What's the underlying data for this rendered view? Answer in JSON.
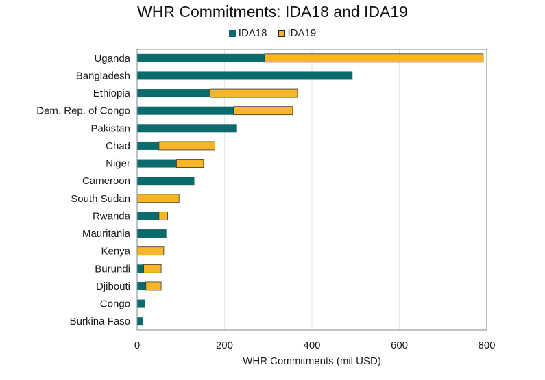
{
  "chart_data": {
    "type": "bar",
    "orientation": "horizontal",
    "stacked": true,
    "title": "WHR Commitments: IDA18 and IDA19",
    "xlabel": "WHR Commitments (mil USD)",
    "ylabel": "",
    "xlim": [
      0,
      800
    ],
    "xticks": [
      0,
      200,
      400,
      600,
      800
    ],
    "grid": "vertical",
    "legend_position": "top",
    "categories": [
      "Uganda",
      "Bangladesh",
      "Ethiopia",
      "Dem. Rep. of Congo",
      "Pakistan",
      "Chad",
      "Niger",
      "Cameroon",
      "South Sudan",
      "Rwanda",
      "Mauritania",
      "Kenya",
      "Burundi",
      "Djibouti",
      "Congo",
      "Burkina Faso"
    ],
    "series": [
      {
        "name": "IDA18",
        "color": "#0b6a6b",
        "values": [
          292,
          493,
          167,
          221,
          227,
          50,
          90,
          131,
          0,
          50,
          67,
          0,
          15,
          20,
          18,
          14
        ]
      },
      {
        "name": "IDA19",
        "color": "#f9b529",
        "values": [
          500,
          0,
          200,
          135,
          0,
          128,
          62,
          0,
          96,
          20,
          0,
          61,
          40,
          35,
          0,
          0
        ]
      }
    ]
  }
}
